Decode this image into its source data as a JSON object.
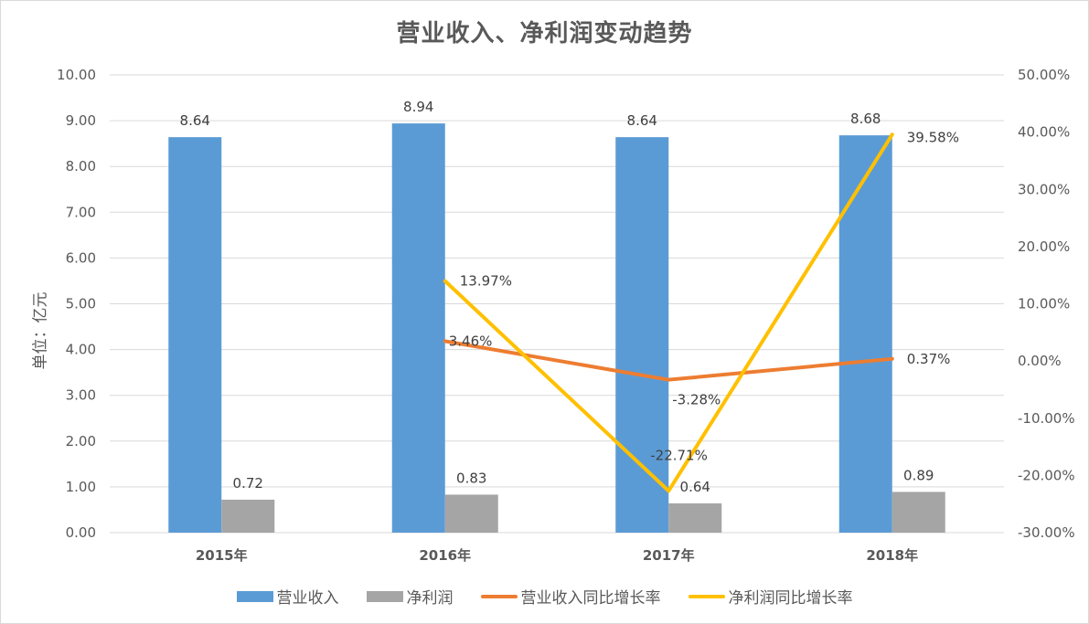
{
  "chart_data": {
    "type": "bar+line",
    "title": "营业收入、净利润变动趋势",
    "categories": [
      "2015年",
      "2016年",
      "2017年",
      "2018年"
    ],
    "ylabel": "单位：亿元",
    "ylim": [
      0,
      10
    ],
    "y2lim": [
      -0.3,
      0.5
    ],
    "yticks": [
      "0.00",
      "1.00",
      "2.00",
      "3.00",
      "4.00",
      "5.00",
      "6.00",
      "7.00",
      "8.00",
      "9.00",
      "10.00"
    ],
    "y2ticks": [
      "-30.00%",
      "-20.00%",
      "-10.00%",
      "0.00%",
      "10.00%",
      "20.00%",
      "30.00%",
      "40.00%",
      "50.00%"
    ],
    "grid": true,
    "legend_position": "bottom",
    "series": [
      {
        "name": "营业收入",
        "type": "bar",
        "axis": "left",
        "color": "#5B9BD5",
        "values": [
          8.64,
          8.94,
          8.64,
          8.68
        ],
        "labels": [
          "8.64",
          "8.94",
          "8.64",
          "8.68"
        ]
      },
      {
        "name": "净利润",
        "type": "bar",
        "axis": "left",
        "color": "#A5A5A5",
        "values": [
          0.72,
          0.83,
          0.64,
          0.89
        ],
        "labels": [
          "0.72",
          "0.83",
          "0.64",
          "0.89"
        ]
      },
      {
        "name": "营业收入同比增长率",
        "type": "line",
        "axis": "right",
        "color": "#ED7D31",
        "values": [
          null,
          3.46,
          -3.28,
          0.37
        ],
        "labels": [
          "",
          "3.46%",
          "-3.28%",
          "0.37%"
        ]
      },
      {
        "name": "净利润同比增长率",
        "type": "line",
        "axis": "right",
        "color": "#FFC000",
        "values": [
          null,
          13.97,
          -22.71,
          39.58
        ],
        "labels": [
          "",
          "13.97%",
          "-22.71%",
          "39.58%"
        ]
      }
    ]
  },
  "legend": {
    "items": [
      {
        "label": "营业收入",
        "color": "#5B9BD5"
      },
      {
        "label": "净利润",
        "color": "#A5A5A5"
      },
      {
        "label": "营业收入同比增长率",
        "color": "#ED7D31"
      },
      {
        "label": "净利润同比增长率",
        "color": "#FFC000"
      }
    ]
  }
}
